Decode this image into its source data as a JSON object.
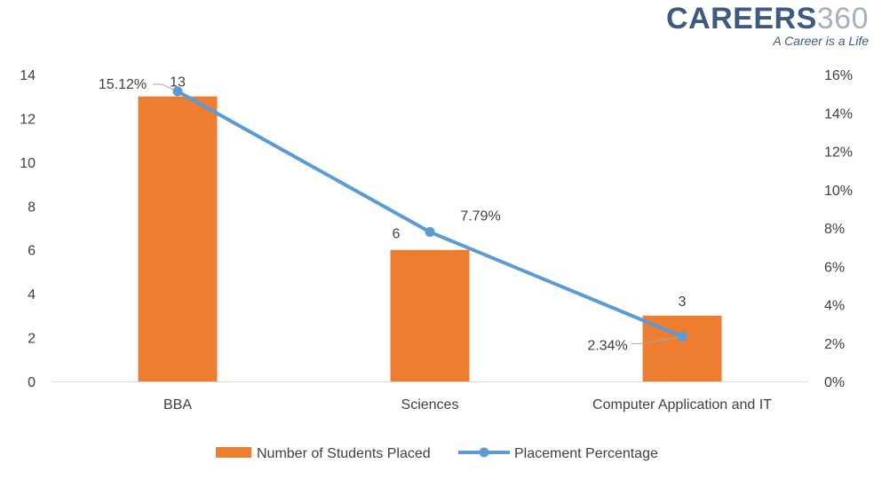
{
  "logo": {
    "brand_a": "CAREERS",
    "brand_b": "360",
    "tagline": "A Career is a Life"
  },
  "chart_data": {
    "type": "bar",
    "categories": [
      "BBA",
      "Sciences",
      "Computer Application and IT"
    ],
    "series": [
      {
        "name": "Number of Students Placed",
        "type": "bar",
        "axis": "left",
        "values": [
          13,
          6,
          3
        ],
        "labels": [
          "13",
          "6",
          "3"
        ],
        "color": "#ED7D31"
      },
      {
        "name": "Placement Percentage",
        "type": "line",
        "axis": "right",
        "values": [
          15.12,
          7.79,
          2.34
        ],
        "labels": [
          "15.12%",
          "7.79%",
          "2.34%"
        ],
        "color": "#5B9BD5"
      }
    ],
    "y_left": {
      "min": 0,
      "max": 14,
      "ticks": [
        "0",
        "2",
        "4",
        "6",
        "8",
        "10",
        "12",
        "14"
      ]
    },
    "y_right": {
      "min": 0,
      "max": 16,
      "ticks": [
        "0%",
        "2%",
        "4%",
        "6%",
        "8%",
        "10%",
        "12%",
        "14%",
        "16%"
      ]
    },
    "grid": false,
    "legend": "bottom"
  }
}
